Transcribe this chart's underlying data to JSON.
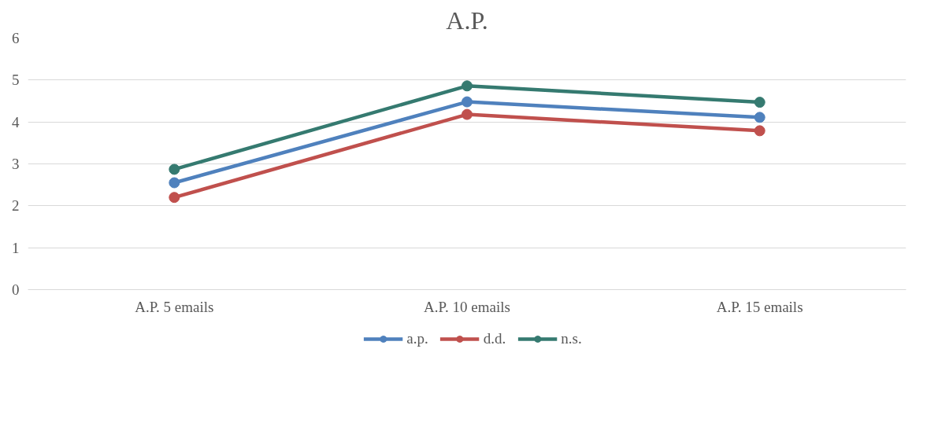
{
  "chart_data": {
    "type": "line",
    "title": "A.P.",
    "categories": [
      "A.P. 5 emails",
      "A.P. 10 emails",
      "A.P. 15 emails"
    ],
    "series": [
      {
        "name": "a.p.",
        "color": "#4f81bd",
        "values": [
          2.55,
          4.48,
          4.11
        ]
      },
      {
        "name": "d.d.",
        "color": "#c0504d",
        "values": [
          2.2,
          4.18,
          3.79
        ]
      },
      {
        "name": "n.s.",
        "color": "#357a70",
        "values": [
          2.87,
          4.86,
          4.47
        ]
      }
    ],
    "ylim": [
      0,
      6
    ],
    "yticks": [
      0,
      1,
      2,
      3,
      4,
      5,
      6
    ],
    "grid": "y",
    "legend": "bottom",
    "marker": "circle",
    "line_style": "solid"
  }
}
